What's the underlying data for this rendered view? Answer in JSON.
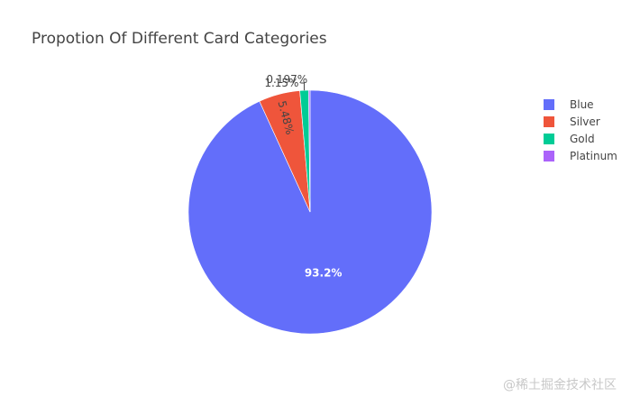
{
  "chart_data": {
    "type": "pie",
    "title": "Propotion Of Different Card Categories",
    "categories": [
      "Blue",
      "Silver",
      "Gold",
      "Platinum"
    ],
    "values": [
      93.2,
      5.48,
      1.15,
      0.197
    ],
    "labels": [
      "93.2%",
      "5.48%",
      "1.15%",
      "0.197%"
    ],
    "colors": [
      "#636efa",
      "#ef553b",
      "#00cc96",
      "#ab63fa"
    ],
    "direction": "clockwise",
    "legend_position": "right"
  },
  "watermark": "@稀土掘金技术社区"
}
